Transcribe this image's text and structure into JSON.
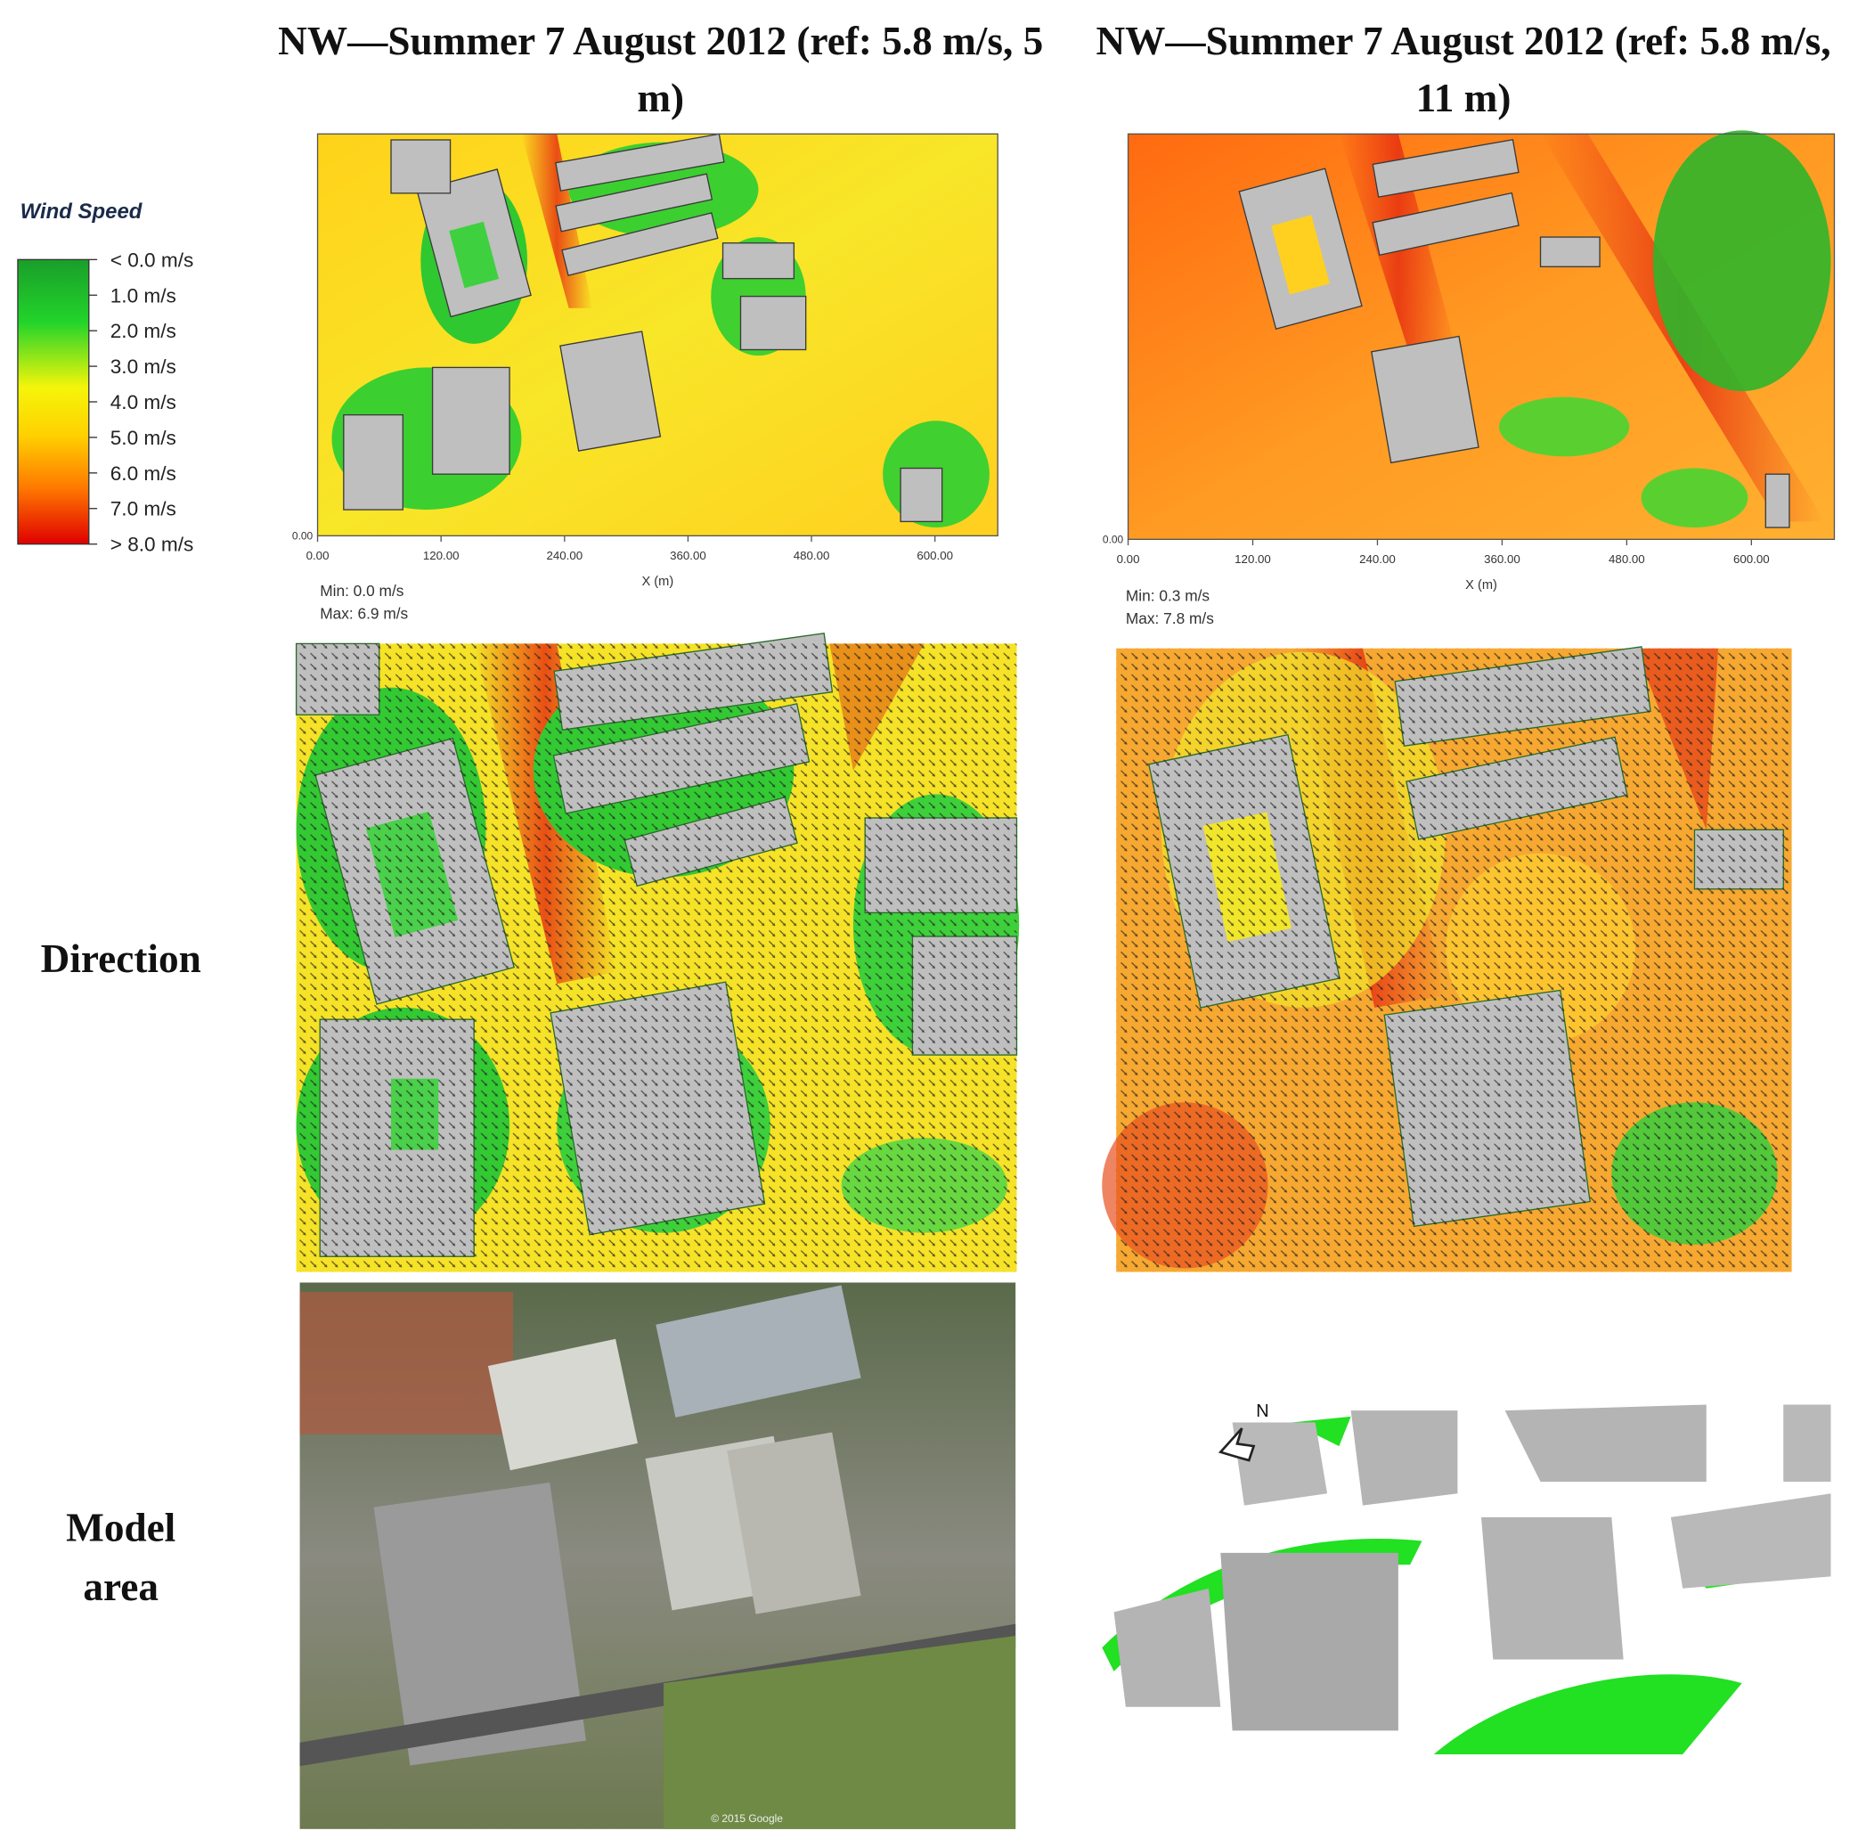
{
  "panels": [
    {
      "title": "NW—Summer 7 August 2012 (ref: 5.8 m/s, 5 m)",
      "y_tick": "0.00",
      "x_ticks": [
        "0.00",
        "120.00",
        "240.00",
        "360.00",
        "480.00",
        "600.00"
      ],
      "x_label": "X (m)",
      "min": "Min: 0.0 m/s",
      "max": "Max: 6.9 m/s"
    },
    {
      "title": "NW—Summer 7 August 2012 (ref: 5.8 m/s, 11 m)",
      "y_tick": "0.00",
      "x_ticks": [
        "0.00",
        "120.00",
        "240.00",
        "360.00",
        "480.00",
        "600.00"
      ],
      "x_label": "X (m)",
      "min": "Min: 0.3 m/s",
      "max": "Max: 7.8 m/s"
    }
  ],
  "legend": {
    "title": "Wind Speed",
    "labels": [
      "< 0.0 m/s",
      "1.0  m/s",
      "2.0  m/s",
      "3.0  m/s",
      "4.0  m/s",
      "5.0  m/s",
      "6.0  m/s",
      "7.0  m/s",
      "> 8.0 m/s"
    ]
  },
  "row_labels": [
    "Direction",
    "Model area"
  ],
  "model": {
    "north": "N"
  },
  "photo": {
    "credit": "© 2015 Google"
  }
}
